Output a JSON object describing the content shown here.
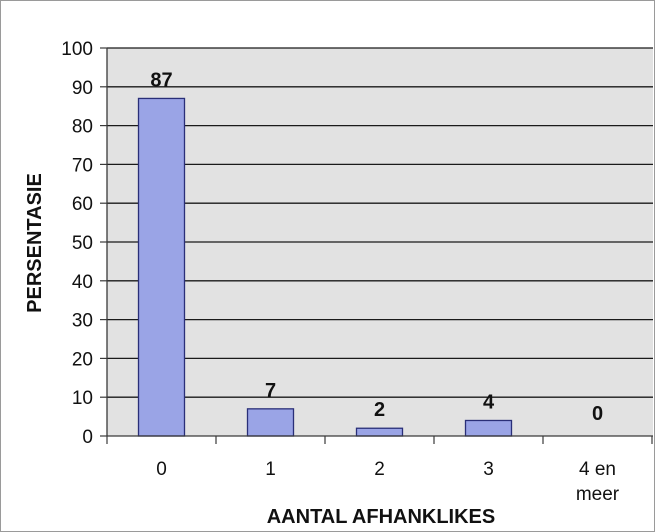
{
  "chart_data": {
    "type": "bar",
    "categories": [
      [
        "0"
      ],
      [
        "1"
      ],
      [
        "2"
      ],
      [
        "3"
      ],
      [
        "4 en",
        "meer"
      ]
    ],
    "values": [
      87,
      7,
      2,
      4,
      0
    ],
    "data_labels": [
      "87",
      "7",
      "2",
      "4",
      "0"
    ],
    "yticks": [
      "0",
      "10",
      "20",
      "30",
      "40",
      "50",
      "60",
      "70",
      "80",
      "90",
      "100"
    ],
    "ylim": [
      0,
      100
    ],
    "xlabel": "AANTAL AFHANKLIKES",
    "ylabel": "PERSENTASIE",
    "grid": true,
    "legend": "none",
    "colors": {
      "bar_fill": "#9aa4e6",
      "bar_stroke": "#2a2f78",
      "plot_bg": "#e2e2e2",
      "gridline": "#1a1a1a",
      "axis": "#3a3a3a"
    }
  }
}
